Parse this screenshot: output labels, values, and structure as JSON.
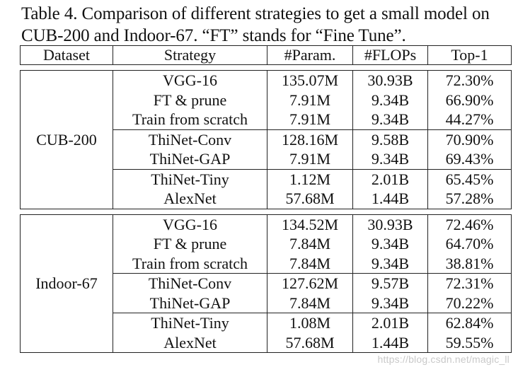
{
  "caption": {
    "line1": "Table 4. Comparison of different strategies to get a small model on",
    "line2": "CUB-200 and Indoor-67. “FT” stands for “Fine Tune”."
  },
  "table": {
    "headers": {
      "dataset": "Dataset",
      "strategy": "Strategy",
      "params": "#Param.",
      "flops": "#FLOPs",
      "top1": "Top-1"
    },
    "sections": [
      {
        "dataset": "CUB-200",
        "rows": [
          {
            "strategy": "VGG-16",
            "params": "135.07M",
            "flops": "30.93B",
            "top1": "72.30%"
          },
          {
            "strategy": "FT & prune",
            "params": "7.91M",
            "flops": "9.34B",
            "top1": "66.90%"
          },
          {
            "strategy": "Train from scratch",
            "params": "7.91M",
            "flops": "9.34B",
            "top1": "44.27%"
          },
          {
            "strategy": "ThiNet-Conv",
            "params": "128.16M",
            "flops": "9.58B",
            "top1": "70.90%"
          },
          {
            "strategy": "ThiNet-GAP",
            "params": "7.91M",
            "flops": "9.34B",
            "top1": "69.43%"
          },
          {
            "strategy": "ThiNet-Tiny",
            "params": "1.12M",
            "flops": "2.01B",
            "top1": "65.45%"
          },
          {
            "strategy": "AlexNet",
            "params": "57.68M",
            "flops": "1.44B",
            "top1": "57.28%"
          }
        ]
      },
      {
        "dataset": "Indoor-67",
        "rows": [
          {
            "strategy": "VGG-16",
            "params": "134.52M",
            "flops": "30.93B",
            "top1": "72.46%"
          },
          {
            "strategy": "FT & prune",
            "params": "7.84M",
            "flops": "9.34B",
            "top1": "64.70%"
          },
          {
            "strategy": "Train from scratch",
            "params": "7.84M",
            "flops": "9.34B",
            "top1": "38.81%"
          },
          {
            "strategy": "ThiNet-Conv",
            "params": "127.62M",
            "flops": "9.57B",
            "top1": "72.31%"
          },
          {
            "strategy": "ThiNet-GAP",
            "params": "7.84M",
            "flops": "9.34B",
            "top1": "70.22%"
          },
          {
            "strategy": "ThiNet-Tiny",
            "params": "1.08M",
            "flops": "2.01B",
            "top1": "62.84%"
          },
          {
            "strategy": "AlexNet",
            "params": "57.68M",
            "flops": "1.44B",
            "top1": "59.55%"
          }
        ]
      }
    ]
  },
  "watermark": "https://blog.csdn.net/magic_ll"
}
